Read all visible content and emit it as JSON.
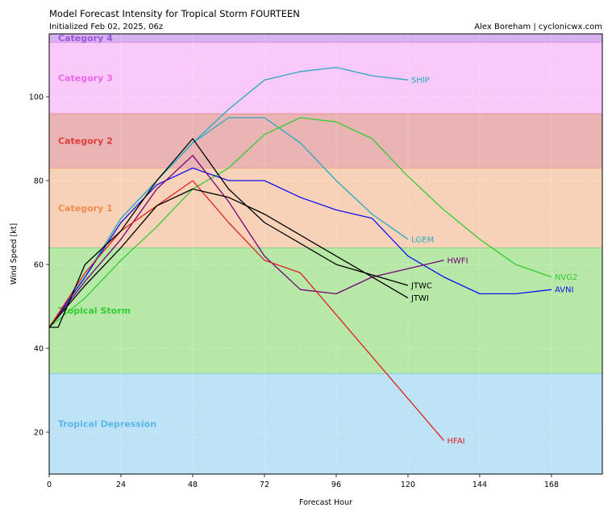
{
  "chart_data": {
    "type": "line",
    "title": "Model Forecast Intensity for Tropical Storm FOURTEEN",
    "subtitle": "Initialized Feb 02, 2025, 06z",
    "credit": "Alex Boreham | cyclonicwx.com",
    "xlabel": "Forecast Hour",
    "ylabel": "Wind Speed [kt]",
    "xlim": [
      0,
      185
    ],
    "ylim": [
      10,
      115
    ],
    "xticks": [
      0,
      24,
      48,
      72,
      96,
      120,
      144,
      168
    ],
    "yticks": [
      20,
      40,
      60,
      80,
      100
    ],
    "grid": true,
    "bands": [
      {
        "label": "Tropical Depression",
        "y0": 10,
        "y1": 34,
        "fill": "#bfe3f6",
        "edge": "#5ab8e8",
        "text": "#5ab8e8"
      },
      {
        "label": "Tropical Storm",
        "y0": 34,
        "y1": 64,
        "fill": "#b7e8a8",
        "edge": "#4ccc4c",
        "text": "#33cc33"
      },
      {
        "label": "Category 1",
        "y0": 64,
        "y1": 83,
        "fill": "#f8d2b8",
        "edge": "#f0a060",
        "text": "#f08c50"
      },
      {
        "label": "Category 2",
        "y0": 83,
        "y1": 96,
        "fill": "#eab4b4",
        "edge": "#e07070",
        "text": "#e03c3c"
      },
      {
        "label": "Category 3",
        "y0": 96,
        "y1": 113,
        "fill": "#f9caf9",
        "edge": "#ee77ee",
        "text": "#ee66ee"
      },
      {
        "label": "Category 4",
        "y0": 113,
        "y1": 115,
        "fill": "#d6b3ef",
        "edge": "#9955dd",
        "text": "#9955dd"
      }
    ],
    "series": [
      {
        "name": "SHIP",
        "color": "#2aa8c0",
        "x": [
          0,
          12,
          24,
          36,
          48,
          60,
          72,
          84,
          96,
          108,
          120
        ],
        "y": [
          45,
          57,
          71,
          80,
          89,
          97,
          104,
          106,
          107,
          105,
          104
        ]
      },
      {
        "name": "LGEM",
        "color": "#2aa8c0",
        "x": [
          0,
          12,
          24,
          36,
          48,
          60,
          72,
          84,
          96,
          108,
          120
        ],
        "y": [
          45,
          57,
          71,
          80,
          89,
          95,
          95,
          89,
          80,
          72,
          66
        ]
      },
      {
        "name": "NVG2",
        "color": "#33cc33",
        "x": [
          0,
          12,
          24,
          36,
          48,
          60,
          72,
          84,
          96,
          108,
          120,
          132,
          144,
          156,
          168
        ],
        "y": [
          45,
          52,
          61,
          69,
          78,
          83,
          91,
          95,
          94,
          90,
          81,
          73,
          66,
          60,
          57
        ]
      },
      {
        "name": "AVNI",
        "color": "#1010ee",
        "x": [
          0,
          12,
          24,
          36,
          48,
          60,
          72,
          84,
          96,
          108,
          120,
          132,
          144,
          156,
          168
        ],
        "y": [
          45,
          57,
          70,
          79,
          83,
          80,
          80,
          76,
          73,
          71,
          62,
          57,
          53,
          53,
          54
        ]
      },
      {
        "name": "HWFI",
        "color": "#770077",
        "x": [
          0,
          12,
          24,
          36,
          48,
          60,
          72,
          84,
          96,
          108,
          120,
          132
        ],
        "y": [
          45,
          56,
          66,
          78,
          86,
          75,
          62,
          54,
          53,
          57,
          59,
          61
        ]
      },
      {
        "name": "HFAI",
        "color": "#dd2222",
        "x": [
          0,
          12,
          24,
          36,
          48,
          60,
          72,
          84,
          96,
          108,
          120,
          132
        ],
        "y": [
          45,
          58,
          68,
          74,
          80,
          70,
          61,
          58,
          48,
          38,
          28,
          18
        ]
      },
      {
        "name": "JTWC",
        "color": "#000000",
        "x": [
          0,
          3,
          12,
          24,
          36,
          48,
          60,
          72,
          96,
          120
        ],
        "y": [
          45,
          45,
          60,
          68,
          80,
          90,
          78,
          70,
          60,
          55
        ]
      },
      {
        "name": "JTWI",
        "color": "#000000",
        "x": [
          0,
          12,
          24,
          36,
          48,
          60,
          72,
          96,
          120
        ],
        "y": [
          45,
          55,
          64,
          74,
          78,
          76,
          72,
          62,
          52
        ]
      }
    ]
  }
}
